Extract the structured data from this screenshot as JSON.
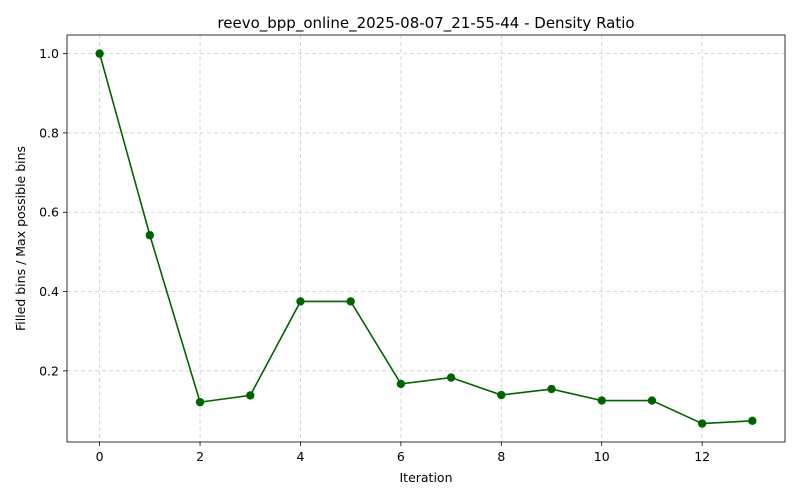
{
  "chart_data": {
    "type": "line",
    "title": "reevo_bpp_online_2025-08-07_21-55-44 - Density Ratio",
    "xlabel": "Iteration",
    "ylabel": "Filled bins / Max possible bins",
    "x": [
      0,
      1,
      2,
      3,
      4,
      5,
      6,
      7,
      8,
      9,
      10,
      11,
      12,
      13
    ],
    "series": [
      {
        "values": [
          1.0,
          0.542,
          0.121,
          0.138,
          0.375,
          0.375,
          0.167,
          0.183,
          0.139,
          0.154,
          0.125,
          0.125,
          0.067,
          0.074
        ],
        "color": "#006400",
        "marker": "circle"
      }
    ],
    "xlim": [
      -0.65,
      13.65
    ],
    "ylim": [
      0.0205,
      1.047
    ],
    "xticks": [
      0,
      2,
      4,
      6,
      8,
      10,
      12
    ],
    "yticks": [
      0.2,
      0.4,
      0.6,
      0.8,
      1.0
    ],
    "xtick_labels": [
      "0",
      "2",
      "4",
      "6",
      "8",
      "10",
      "12"
    ],
    "ytick_labels": [
      "0.2",
      "0.4",
      "0.6",
      "0.8",
      "1.0"
    ],
    "grid": true,
    "legend": false
  }
}
